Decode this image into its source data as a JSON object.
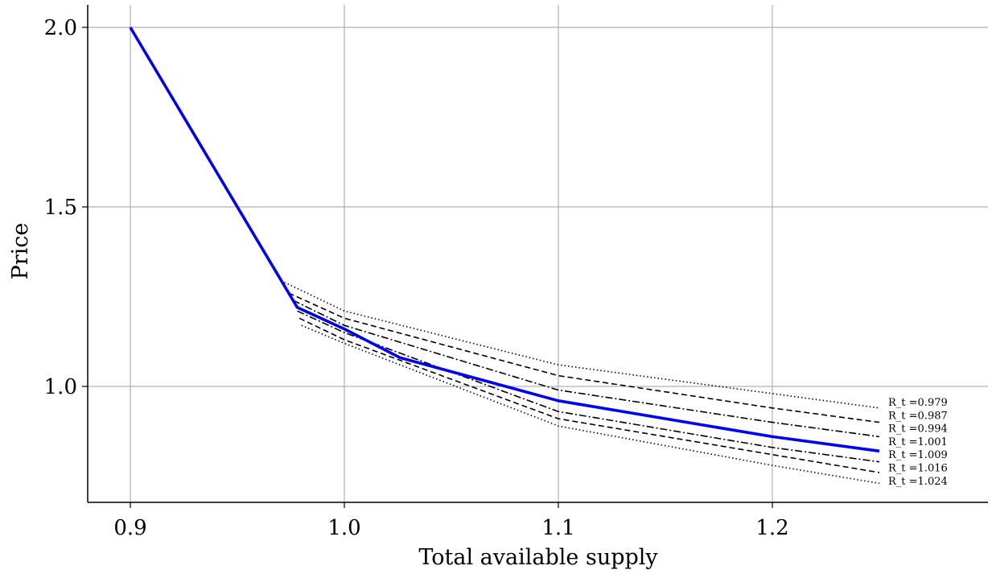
{
  "chart_data": {
    "type": "line",
    "title": "",
    "xlabel": "Total available supply",
    "ylabel": "Price",
    "xlim": [
      0.88,
      1.3
    ],
    "ylim": [
      0.68,
      2.07
    ],
    "grid": true,
    "x_ticks": [
      {
        "value": 0.9,
        "label": "0.9"
      },
      {
        "value": 1.0,
        "label": "1.0"
      },
      {
        "value": 1.1,
        "label": "1.1"
      },
      {
        "value": 1.2,
        "label": "1.2"
      }
    ],
    "y_ticks": [
      {
        "value": 1.0,
        "label": "1.0"
      },
      {
        "value": 1.5,
        "label": "1.5"
      },
      {
        "value": 2.0,
        "label": "2.0"
      }
    ],
    "main_series": {
      "color": "#0000ee",
      "x": [
        0.9,
        0.978,
        1.0,
        1.026,
        1.1,
        1.2,
        1.25
      ],
      "y": [
        2.0,
        1.22,
        1.16,
        1.08,
        0.96,
        0.86,
        0.82
      ]
    },
    "series": [
      {
        "name": "R_t =0.979",
        "style": "dotted",
        "x": [
          0.972,
          1.0,
          1.1,
          1.2,
          1.25
        ],
        "y": [
          1.29,
          1.21,
          1.06,
          0.98,
          0.94
        ]
      },
      {
        "name": "R_t =0.987",
        "style": "dashed",
        "x": [
          0.974,
          1.0,
          1.1,
          1.2,
          1.25
        ],
        "y": [
          1.26,
          1.19,
          1.03,
          0.94,
          0.9
        ]
      },
      {
        "name": "R_t =0.994",
        "style": "dashdot",
        "x": [
          0.976,
          1.0,
          1.1,
          1.2,
          1.25
        ],
        "y": [
          1.24,
          1.17,
          0.99,
          0.9,
          0.86
        ]
      },
      {
        "name": "R_t =1.001",
        "style": "none",
        "x": [],
        "y": []
      },
      {
        "name": "R_t =1.009",
        "style": "dashdot",
        "x": [
          0.978,
          1.0,
          1.1,
          1.2,
          1.25
        ],
        "y": [
          1.21,
          1.15,
          0.93,
          0.83,
          0.79
        ]
      },
      {
        "name": "R_t =1.016",
        "style": "dashed",
        "x": [
          0.979,
          1.0,
          1.1,
          1.2,
          1.25
        ],
        "y": [
          1.19,
          1.13,
          0.91,
          0.81,
          0.76
        ]
      },
      {
        "name": "R_t =1.024",
        "style": "dotted",
        "x": [
          0.98,
          1.0,
          1.1,
          1.2,
          1.25
        ],
        "y": [
          1.17,
          1.12,
          0.89,
          0.78,
          0.73
        ]
      }
    ]
  }
}
